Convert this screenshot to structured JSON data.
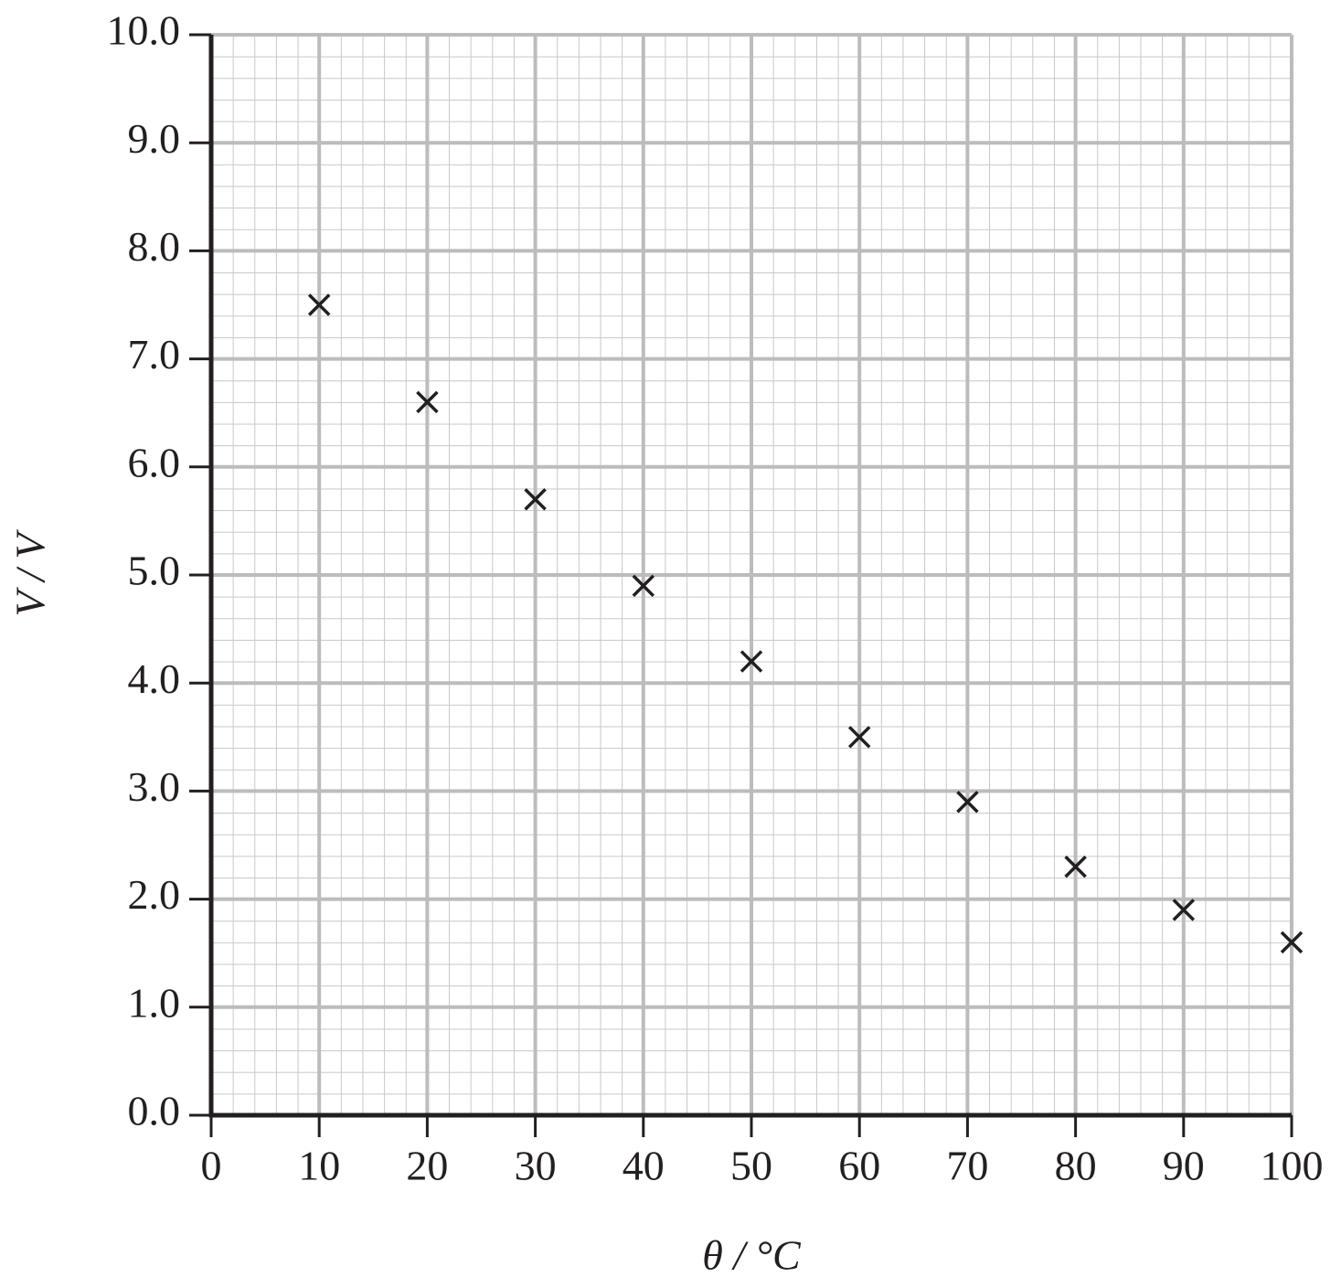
{
  "chart_data": {
    "type": "scatter",
    "x_label": "θ / °C",
    "y_label": "V / V",
    "x": [
      10,
      20,
      30,
      40,
      50,
      60,
      70,
      80,
      90,
      100
    ],
    "values": [
      7.5,
      6.6,
      5.7,
      4.9,
      4.2,
      3.5,
      2.9,
      2.3,
      1.9,
      1.6
    ],
    "color": "#231f20",
    "marker": "x",
    "xlim": [
      0,
      100
    ],
    "ylim": [
      0,
      10
    ],
    "xticks": [
      0,
      10,
      20,
      30,
      40,
      50,
      60,
      70,
      80,
      90,
      100
    ],
    "yticks": [
      {
        "value": 0,
        "label": "0.0"
      },
      {
        "value": 1,
        "label": "1.0"
      },
      {
        "value": 2,
        "label": "2.0"
      },
      {
        "value": 3,
        "label": "3.0"
      },
      {
        "value": 4,
        "label": "4.0"
      },
      {
        "value": 5,
        "label": "5.0"
      },
      {
        "value": 6,
        "label": "6.0"
      },
      {
        "value": 7,
        "label": "7.0"
      },
      {
        "value": 8,
        "label": "8.0"
      },
      {
        "value": 9,
        "label": "9.0"
      },
      {
        "value": 10,
        "label": "10.0"
      }
    ],
    "grid": true
  }
}
